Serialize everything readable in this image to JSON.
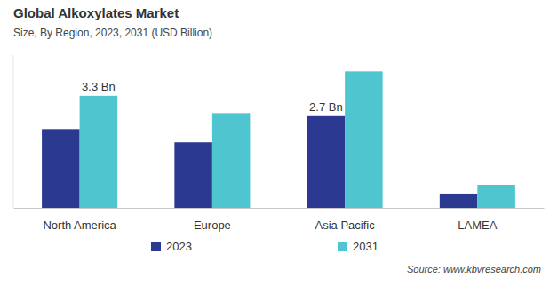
{
  "chart_data": {
    "type": "bar",
    "title": "Global Alkoxylates Market",
    "subtitle": "Size, By Region, 2023, 2031 (USD Billion)",
    "categories": [
      "North America",
      "Europe",
      "Asia Pacific",
      "LAMEA"
    ],
    "series": [
      {
        "name": "2023",
        "color": "#2b3990",
        "values": [
          2.32,
          1.93,
          2.7,
          0.42
        ],
        "value_labels": [
          null,
          null,
          "2.7 Bn",
          null
        ]
      },
      {
        "name": "2031",
        "color": "#4fc5cf",
        "values": [
          3.3,
          2.79,
          4.02,
          0.68
        ],
        "value_labels": [
          "3.3 Bn",
          null,
          null,
          null
        ]
      }
    ],
    "ylim": [
      0,
      4.5
    ],
    "tick_labels": "x",
    "data_labels": true,
    "legend": "bottom",
    "source": "Source: www.kbvresearch.com"
  }
}
